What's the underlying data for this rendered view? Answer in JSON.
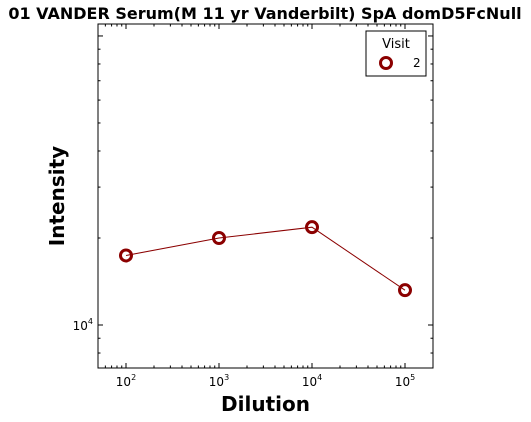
{
  "chart_data": {
    "type": "line",
    "title": "01 VANDER Serum(M 11 yr Vanderbilt) SpA domD5FcNull",
    "xlabel": "Dilution",
    "ylabel": "Intensity",
    "x_scale": "log",
    "y_scale": "log",
    "xlim": [
      50,
      200000
    ],
    "ylim": [
      7100,
      110000
    ],
    "x_ticks": [
      {
        "value": 100,
        "base": "10",
        "exp": "2"
      },
      {
        "value": 1000,
        "base": "10",
        "exp": "3"
      },
      {
        "value": 10000,
        "base": "10",
        "exp": "4"
      },
      {
        "value": 100000,
        "base": "10",
        "exp": "5"
      }
    ],
    "y_ticks": [
      {
        "value": 10000,
        "base": "10",
        "exp": "4"
      }
    ],
    "legend": {
      "title": "Visit",
      "position": "top-right"
    },
    "series": [
      {
        "name": "2",
        "color": "#8b0000",
        "x": [
          100,
          1000,
          10000,
          100000
        ],
        "y": [
          17400,
          20000,
          21800,
          13200
        ]
      }
    ]
  }
}
